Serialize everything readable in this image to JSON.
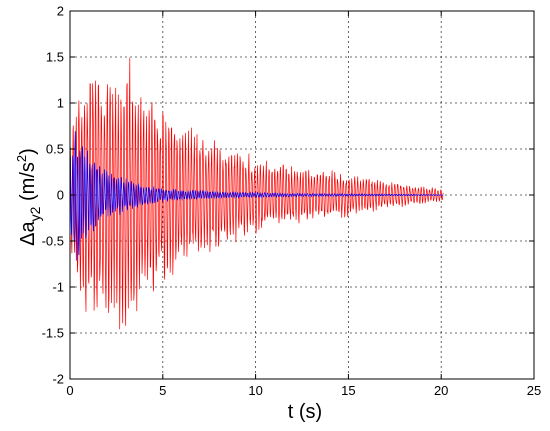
{
  "chart_data": {
    "type": "line",
    "xlabel": "t (s)",
    "ylabel": {
      "main": "Δa",
      "subscript": "y2",
      "unit_open": " (m/s",
      "unit_sup": "2",
      "unit_close": ")"
    },
    "xlim": [
      0,
      25
    ],
    "ylim": [
      -2,
      2
    ],
    "x_ticks": [
      "0",
      "5",
      "10",
      "15",
      "20",
      "25"
    ],
    "y_ticks": [
      "2",
      "1.5",
      "1",
      "0.5",
      "0",
      "-0.5",
      "-1",
      "-1.5",
      "-2"
    ],
    "grid": true,
    "series": [
      {
        "color": "#ff0000",
        "t_end": 20.1,
        "envelope": [
          [
            0,
            0.6
          ],
          [
            0.5,
            1.2
          ],
          [
            1.0,
            1.5
          ],
          [
            1.5,
            1.65
          ],
          [
            2.0,
            1.5
          ],
          [
            3.0,
            1.55
          ],
          [
            4.0,
            1.3
          ],
          [
            5.0,
            1.0
          ],
          [
            6.0,
            0.85
          ],
          [
            8.0,
            0.6
          ],
          [
            10.0,
            0.45
          ],
          [
            12.0,
            0.35
          ],
          [
            14.0,
            0.28
          ],
          [
            16.0,
            0.2
          ],
          [
            18.0,
            0.13
          ],
          [
            20.1,
            0.07
          ]
        ]
      },
      {
        "color": "#0000ff",
        "t_end": 20.1,
        "envelope": [
          [
            0,
            0.5
          ],
          [
            0.3,
            0.75
          ],
          [
            1.0,
            0.5
          ],
          [
            2.0,
            0.28
          ],
          [
            3.0,
            0.2
          ],
          [
            4.0,
            0.12
          ],
          [
            5.0,
            0.08
          ],
          [
            8.0,
            0.04
          ],
          [
            12.0,
            0.02
          ],
          [
            20.1,
            0.005
          ]
        ]
      }
    ]
  }
}
